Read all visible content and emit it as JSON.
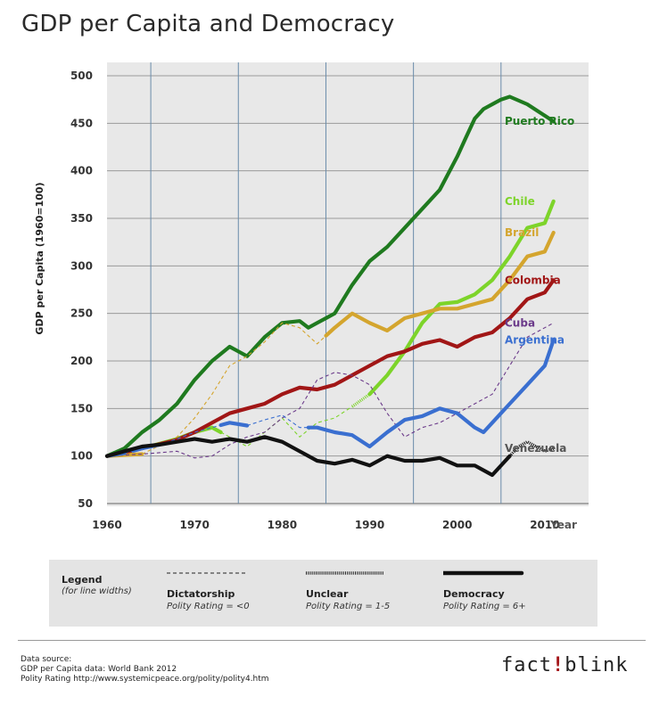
{
  "title": "GDP per Capita and Democracy",
  "chart_data": {
    "type": "line",
    "title": "GDP per Capita and Democracy",
    "ylabel": "GDP per Capita (1960=100)",
    "xlabel": "Year",
    "xlim": [
      1960,
      2015
    ],
    "ylim": [
      50,
      500
    ],
    "xticks": [
      "1960",
      "1970",
      "1980",
      "1990",
      "2000",
      "2010"
    ],
    "yticks": [
      "50",
      "100",
      "150",
      "200",
      "250",
      "300",
      "350",
      "400",
      "450",
      "500"
    ],
    "regime_boundaries": [
      1965,
      1975,
      1985,
      1995,
      2005
    ],
    "series": [
      {
        "name": "Puerto Rico",
        "color": "#1f7a1f",
        "x": [
          1960,
          1962,
          1964,
          1966,
          1968,
          1970,
          1972,
          1974,
          1975,
          1976,
          1978,
          1980,
          1982,
          1983,
          1984,
          1985,
          1986,
          1988,
          1990,
          1992,
          1994,
          1996,
          1998,
          2000,
          2001,
          2002,
          2003,
          2004,
          2005,
          2006,
          2008,
          2010,
          2011
        ],
        "y": [
          100,
          108,
          125,
          138,
          155,
          180,
          200,
          215,
          210,
          205,
          225,
          240,
          242,
          235,
          240,
          245,
          250,
          280,
          305,
          320,
          340,
          360,
          380,
          415,
          435,
          455,
          465,
          470,
          475,
          478,
          470,
          458,
          452
        ],
        "regime": [
          [
            1960,
            2011,
            "democracy"
          ]
        ]
      },
      {
        "name": "Chile",
        "color": "#7dd42a",
        "x": [
          1960,
          1964,
          1968,
          1970,
          1972,
          1974,
          1976,
          1978,
          1980,
          1982,
          1984,
          1986,
          1988,
          1990,
          1992,
          1994,
          1996,
          1998,
          2000,
          2002,
          2004,
          2006,
          2008,
          2010,
          2011
        ],
        "y": [
          100,
          108,
          118,
          125,
          130,
          120,
          110,
          125,
          140,
          120,
          135,
          140,
          152,
          165,
          185,
          210,
          240,
          260,
          262,
          270,
          285,
          310,
          340,
          345,
          368
        ],
        "regime": [
          [
            1960,
            1973,
            "democracy"
          ],
          [
            1973,
            1988,
            "dictatorship"
          ],
          [
            1988,
            1990,
            "unclear"
          ],
          [
            1990,
            2011,
            "democracy"
          ]
        ]
      },
      {
        "name": "Brazil",
        "color": "#d4a52e",
        "x": [
          1960,
          1964,
          1968,
          1970,
          1972,
          1974,
          1976,
          1978,
          1980,
          1982,
          1984,
          1986,
          1988,
          1990,
          1992,
          1994,
          1996,
          1998,
          2000,
          2002,
          2004,
          2006,
          2008,
          2010,
          2011
        ],
        "y": [
          100,
          102,
          120,
          140,
          165,
          195,
          205,
          220,
          240,
          235,
          218,
          235,
          250,
          240,
          232,
          245,
          250,
          255,
          255,
          260,
          265,
          285,
          310,
          315,
          335
        ],
        "regime": [
          [
            1960,
            1964,
            "democracy"
          ],
          [
            1964,
            1985,
            "dictatorship"
          ],
          [
            1985,
            2011,
            "democracy"
          ]
        ]
      },
      {
        "name": "Colombia",
        "color": "#a11616",
        "x": [
          1960,
          1964,
          1968,
          1970,
          1972,
          1974,
          1976,
          1978,
          1980,
          1982,
          1984,
          1986,
          1988,
          1990,
          1992,
          1994,
          1996,
          1998,
          2000,
          2002,
          2004,
          2006,
          2008,
          2010,
          2011
        ],
        "y": [
          100,
          108,
          117,
          125,
          135,
          145,
          150,
          155,
          165,
          172,
          170,
          175,
          185,
          195,
          205,
          210,
          218,
          222,
          215,
          225,
          230,
          245,
          265,
          272,
          285
        ],
        "regime": [
          [
            1960,
            2011,
            "democracy"
          ]
        ]
      },
      {
        "name": "Cuba",
        "color": "#6b3a8a",
        "x": [
          1960,
          1964,
          1968,
          1970,
          1972,
          1974,
          1976,
          1978,
          1980,
          1982,
          1984,
          1986,
          1988,
          1990,
          1992,
          1994,
          1996,
          1998,
          2000,
          2002,
          2004,
          2006,
          2008,
          2010,
          2011
        ],
        "y": [
          100,
          102,
          105,
          98,
          100,
          112,
          120,
          125,
          140,
          150,
          180,
          188,
          185,
          175,
          145,
          120,
          130,
          135,
          145,
          155,
          165,
          195,
          225,
          235,
          240
        ],
        "regime": [
          [
            1960,
            2011,
            "dictatorship"
          ]
        ]
      },
      {
        "name": "Argentina",
        "color": "#3a6fd0",
        "x": [
          1960,
          1962,
          1964,
          1966,
          1968,
          1970,
          1972,
          1974,
          1976,
          1978,
          1980,
          1982,
          1984,
          1986,
          1988,
          1990,
          1992,
          1994,
          1996,
          1998,
          2000,
          2002,
          2003,
          2004,
          2006,
          2008,
          2010,
          2011
        ],
        "y": [
          100,
          103,
          108,
          112,
          118,
          125,
          130,
          135,
          132,
          138,
          143,
          130,
          130,
          125,
          122,
          110,
          125,
          138,
          142,
          150,
          145,
          130,
          125,
          135,
          155,
          175,
          195,
          222
        ],
        "regime": [
          [
            1960,
            1962,
            "democracy"
          ],
          [
            1962,
            1963,
            "dictatorship"
          ],
          [
            1963,
            1966,
            "democracy"
          ],
          [
            1966,
            1973,
            "dictatorship"
          ],
          [
            1973,
            1976,
            "democracy"
          ],
          [
            1976,
            1983,
            "dictatorship"
          ],
          [
            1983,
            2011,
            "democracy"
          ]
        ]
      },
      {
        "name": "Venezuela",
        "color": "#111111",
        "x": [
          1960,
          1962,
          1964,
          1966,
          1968,
          1970,
          1972,
          1974,
          1976,
          1978,
          1980,
          1982,
          1984,
          1986,
          1988,
          1990,
          1992,
          1994,
          1996,
          1998,
          2000,
          2002,
          2004,
          2006,
          2007,
          2008,
          2009,
          2010,
          2011
        ],
        "y": [
          100,
          105,
          110,
          112,
          115,
          118,
          115,
          118,
          115,
          120,
          115,
          105,
          95,
          92,
          96,
          90,
          100,
          95,
          95,
          98,
          90,
          90,
          80,
          100,
          110,
          115,
          110,
          105,
          108
        ],
        "regime": [
          [
            1960,
            2006,
            "democracy"
          ],
          [
            2006,
            2011,
            "unclear"
          ]
        ]
      }
    ]
  },
  "legend": {
    "title": "Legend",
    "subtitle": "(for line widths)",
    "items": [
      {
        "name": "Dictatorship",
        "rating": "Polity Rating = <0"
      },
      {
        "name": "Unclear",
        "rating": "Polity Rating = 1-5"
      },
      {
        "name": "Democracy",
        "rating": "Polity Rating = 6+"
      }
    ]
  },
  "source": {
    "line1": "Data source:",
    "line2": "GDP per Capita data: World Bank 2012",
    "line3": "Polity Rating http://www.systemicpeace.org/polity/polity4.htm"
  },
  "brand": {
    "left": "fact",
    "bang": "!",
    "right": "blink"
  }
}
